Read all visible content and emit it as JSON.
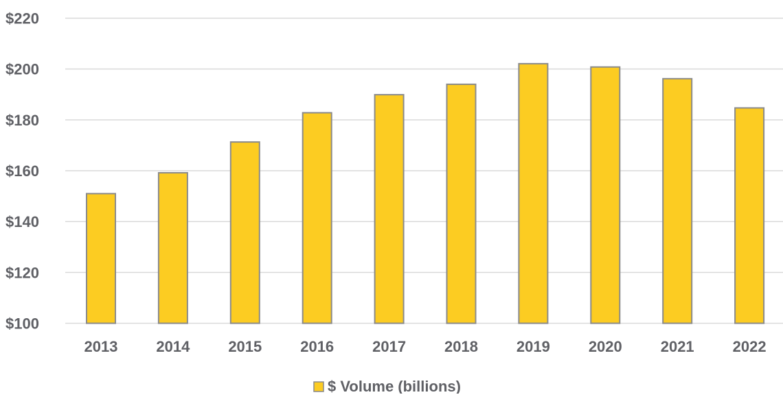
{
  "chart_data": {
    "type": "bar",
    "title": "",
    "xlabel": "",
    "ylabel": "",
    "categories": [
      "2013",
      "2014",
      "2015",
      "2016",
      "2017",
      "2018",
      "2019",
      "2020",
      "2021",
      "2022"
    ],
    "series": [
      {
        "name": "$ Volume (billions)",
        "values": [
          151,
          159.2,
          171.3,
          182.8,
          189.9,
          194,
          202.1,
          200.8,
          196.2,
          184.7
        ]
      }
    ],
    "ylim": [
      100,
      220
    ],
    "y_ticks": [
      "$100",
      "$120",
      "$140",
      "$160",
      "$180",
      "$200",
      "$220"
    ],
    "grid": true,
    "legend_position": "bottom-center",
    "colors": {
      "bar_fill": "#fccc22",
      "bar_stroke": "#8a8a8a",
      "gridline": "#d9d9d9",
      "text": "#5f6065"
    }
  }
}
